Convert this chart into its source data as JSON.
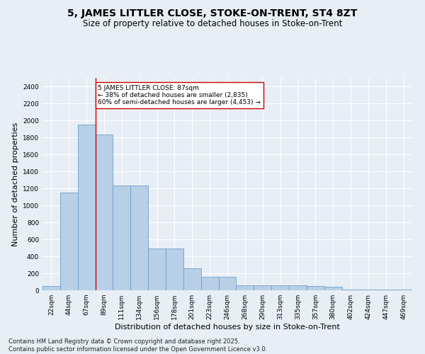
{
  "title": "5, JAMES LITTLER CLOSE, STOKE-ON-TRENT, ST4 8ZT",
  "subtitle": "Size of property relative to detached houses in Stoke-on-Trent",
  "xlabel": "Distribution of detached houses by size in Stoke-on-Trent",
  "ylabel": "Number of detached properties",
  "categories": [
    "22sqm",
    "44sqm",
    "67sqm",
    "89sqm",
    "111sqm",
    "134sqm",
    "156sqm",
    "178sqm",
    "201sqm",
    "223sqm",
    "246sqm",
    "268sqm",
    "290sqm",
    "313sqm",
    "335sqm",
    "357sqm",
    "380sqm",
    "402sqm",
    "424sqm",
    "447sqm",
    "469sqm"
  ],
  "values": [
    50,
    1150,
    1950,
    1830,
    1230,
    1230,
    490,
    490,
    260,
    160,
    160,
    60,
    60,
    55,
    55,
    50,
    40,
    10,
    5,
    5,
    5
  ],
  "bar_color": "#b8cfe8",
  "bar_edge_color": "#6aa0cc",
  "vline_x": 2.5,
  "vline_color": "#cc0000",
  "annotation_text": "5 JAMES LITTLER CLOSE: 87sqm\n← 38% of detached houses are smaller (2,835)\n60% of semi-detached houses are larger (4,453) →",
  "annotation_box_color": "#ffffff",
  "annotation_box_edge_color": "#cc0000",
  "ylim": [
    0,
    2500
  ],
  "yticks": [
    0,
    200,
    400,
    600,
    800,
    1000,
    1200,
    1400,
    1600,
    1800,
    2000,
    2200,
    2400
  ],
  "background_color": "#e8eef5",
  "footer_line1": "Contains HM Land Registry data © Crown copyright and database right 2025.",
  "footer_line2": "Contains public sector information licensed under the Open Government Licence v3.0.",
  "title_fontsize": 10,
  "subtitle_fontsize": 8.5,
  "tick_fontsize": 6.5,
  "ylabel_fontsize": 8,
  "xlabel_fontsize": 8,
  "annotation_fontsize": 6.5
}
